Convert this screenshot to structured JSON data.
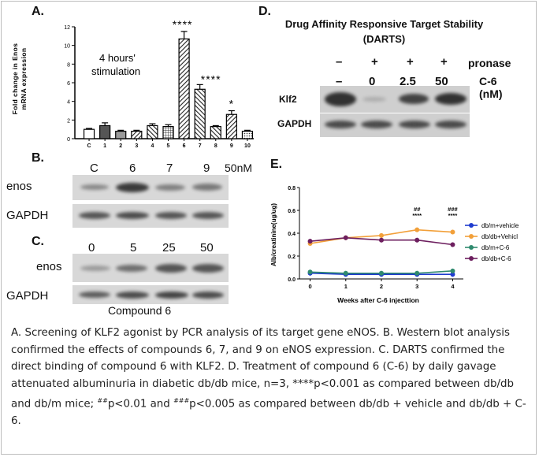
{
  "panel_a": {
    "letter": "A.",
    "ylabel_line1": "Fold change in Enos",
    "ylabel_line2": "mRNA expression",
    "annotation_line1": "4 hours'",
    "annotation_line2": "stimulation",
    "chart_data": {
      "type": "bar",
      "categories": [
        "C",
        "1",
        "2",
        "3",
        "4",
        "5",
        "6",
        "7",
        "8",
        "9",
        "10"
      ],
      "values": [
        1.0,
        1.4,
        0.8,
        0.8,
        1.4,
        1.3,
        10.7,
        5.3,
        1.3,
        2.6,
        0.8
      ],
      "errors": [
        0.1,
        0.3,
        0.1,
        0.1,
        0.2,
        0.2,
        0.8,
        0.5,
        0.1,
        0.4,
        0.1
      ],
      "significance": [
        "",
        "",
        "",
        "",
        "",
        "",
        "****",
        "****",
        "",
        "*",
        ""
      ],
      "fills": [
        "white",
        "darkgray",
        "gray",
        "hatch-r",
        "hatch-l",
        "grid",
        "hatch-r",
        "hatch-l",
        "hatch-l",
        "hatch-r",
        "dots"
      ],
      "ylim": [
        0,
        12
      ],
      "yticks": [
        0,
        2,
        4,
        6,
        8,
        10,
        12
      ]
    }
  },
  "panel_b": {
    "letter": "B.",
    "lanes": [
      "C",
      "6",
      "7",
      "9"
    ],
    "unit": "50nM",
    "rows": [
      "enos",
      "GAPDH"
    ]
  },
  "panel_c": {
    "letter": "C.",
    "lanes": [
      "0",
      "5",
      "25",
      "50"
    ],
    "rows": [
      "enos",
      "GAPDH"
    ],
    "compound_label": "Compound 6"
  },
  "panel_d": {
    "letter": "D.",
    "title_line1": "Drug Affinity Responsive Target Stability",
    "title_line2": "(DARTS)",
    "pronase_row": [
      "–",
      "+",
      "+",
      "+"
    ],
    "pronase_label": "pronase",
    "c6_row": [
      "–",
      "0",
      "2.5",
      "50"
    ],
    "c6_label": "C-6",
    "c6_unit": "(nM)",
    "rows": [
      "Klf2",
      "GAPDH"
    ]
  },
  "panel_e": {
    "letter": "E.",
    "chart_data": {
      "type": "line",
      "x": [
        0,
        1,
        2,
        3,
        4
      ],
      "xlabel": "Weeks after C-6 injecttion",
      "ylabel": "Alb/creatinine(ug/ug)",
      "ylim": [
        0,
        0.8
      ],
      "yticks": [
        "0.0",
        "0.2",
        "0.4",
        "0.6",
        "0.8"
      ],
      "series": [
        {
          "name": "db/m+vehicle",
          "values": [
            0.05,
            0.04,
            0.04,
            0.04,
            0.04
          ],
          "color": "#1f3ccf"
        },
        {
          "name": "db/db+Vehicl",
          "values": [
            0.31,
            0.36,
            0.38,
            0.43,
            0.41
          ],
          "color": "#f2a03a"
        },
        {
          "name": "db/m+C-6",
          "values": [
            0.06,
            0.05,
            0.05,
            0.05,
            0.07
          ],
          "color": "#2f8a6e"
        },
        {
          "name": "db/db+C-6",
          "values": [
            0.33,
            0.36,
            0.34,
            0.34,
            0.3
          ],
          "color": "#6d1f5f"
        }
      ],
      "annotations": [
        {
          "x": 3,
          "lines": [
            "##",
            "****"
          ]
        },
        {
          "x": 4,
          "lines": [
            "###",
            "****"
          ]
        }
      ]
    }
  },
  "caption": {
    "part1": "A. Screening of KLF2 agonist by PCR analysis of its target gene eNOS. B. Western blot analysis confirmed the effects of compounds 6, 7, and 9 on eNOS expression. C. DARTS confirmed the direct binding of compound 6 with KLF2. D. Treatment of compound 6 (C-6) by daily gavage attenuated albuminuria in diabetic db/db mice, n=3, ****p<0.001 as compared between db/db and db/m mice; ",
    "sup1": "##",
    "part2": "p<0.01 and ",
    "sup2": "###",
    "part3": "p<0.005 as compared between db/db + vehicle and db/db + C-6."
  }
}
